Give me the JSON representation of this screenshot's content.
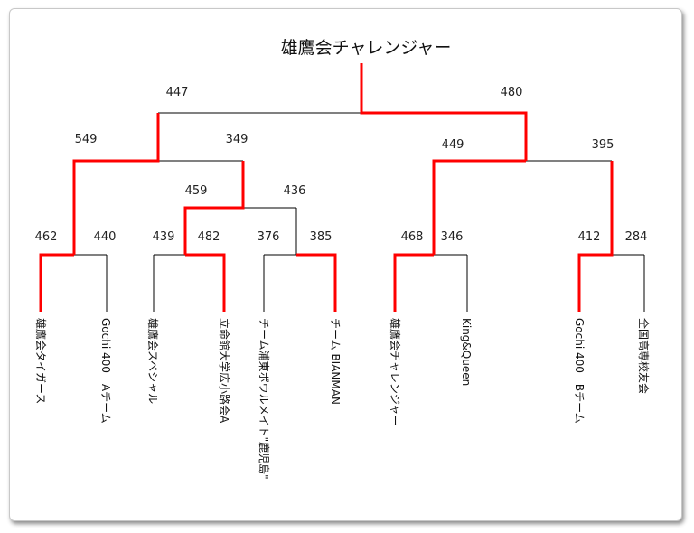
{
  "title": "雄鷹会チャレンジャー",
  "colors": {
    "line": "#000000",
    "winner": "#ff0000"
  },
  "teams": [
    "雄鷹会タイガース",
    "Gochi 400　Aチーム",
    "雄鷹会スペシャル",
    "立命館大学広小路会A",
    "チーム浦東ボウルメイト\"鹿児島\"",
    "チーム BIANMAN",
    "雄鷹会チャレンジャー",
    "King&Queen",
    "Gochi 400　Bチーム",
    "全国高専校友会"
  ],
  "scores": {
    "r1": [
      "462",
      "440",
      "439",
      "482",
      "376",
      "385",
      "468",
      "346",
      "412",
      "284"
    ],
    "qf": [
      "459",
      "436"
    ],
    "sf": [
      "549",
      "349",
      "449",
      "395"
    ],
    "final": [
      "447",
      "480"
    ]
  }
}
